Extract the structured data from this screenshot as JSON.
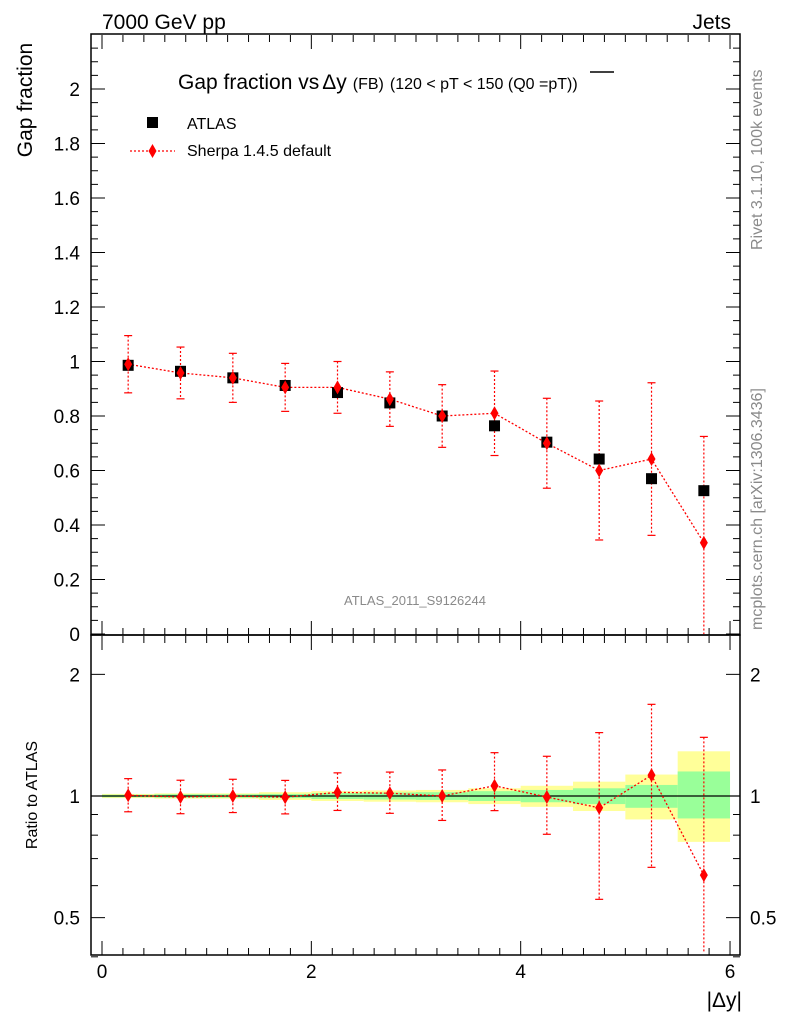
{
  "header": {
    "left": "7000 GeV pp",
    "right": "Jets"
  },
  "side_labels": {
    "rivet": "Rivet 3.1.10,  100k events",
    "mcplots": "mcplots.cern.ch [arXiv:1306.3436]"
  },
  "chart_data": [
    {
      "type": "scatter",
      "title_main": "Gap fraction vs",
      "title_delta": "Δy",
      "title_tail": "(FB)",
      "title_cut": "(120 < pT < 150 (Q0 =",
      "title_pt": "pT",
      "title_close": "))",
      "ylabel": "Gap fraction",
      "analysis_label": "ATLAS_2011_S9126244",
      "ylim": [
        0,
        2.2
      ],
      "y_ticks": [
        "0",
        "0.2",
        "0.4",
        "0.6",
        "0.8",
        "1",
        "1.2",
        "1.4",
        "1.6",
        "1.8",
        "2"
      ],
      "x": [
        0.25,
        0.75,
        1.25,
        1.75,
        2.25,
        2.75,
        3.25,
        3.75,
        4.25,
        4.75,
        5.25,
        5.75
      ],
      "series": [
        {
          "name": "ATLAS",
          "color": "#000000",
          "marker": "square",
          "values": [
            0.986,
            0.964,
            0.94,
            0.912,
            0.886,
            0.848,
            0.8,
            0.764,
            0.704,
            0.642,
            0.57,
            0.526
          ]
        },
        {
          "name": "Sherpa 1.4.5 default",
          "color": "#ff0000",
          "marker": "diamond",
          "values": [
            0.99,
            0.958,
            0.94,
            0.905,
            0.905,
            0.862,
            0.8,
            0.81,
            0.7,
            0.6,
            0.642,
            0.335
          ],
          "err": [
            0.105,
            0.095,
            0.09,
            0.088,
            0.095,
            0.1,
            0.115,
            0.155,
            0.165,
            0.255,
            0.28,
            0.39
          ]
        }
      ]
    },
    {
      "type": "scatter",
      "ylabel": "Ratio to ATLAS",
      "xlabel": "|Δy|",
      "ylim": [
        0.3,
        2.3
      ],
      "xlim": [
        -0.1,
        6.1
      ],
      "y_ticks": [
        "0.5",
        "1",
        "2"
      ],
      "y_tick_values": [
        0.5,
        1,
        2
      ],
      "x_ticks": [
        "0",
        "2",
        "4",
        "6"
      ],
      "x_tick_values": [
        0,
        2,
        4,
        6
      ],
      "bins": [
        0,
        0.5,
        1,
        1.5,
        2,
        2.5,
        3,
        3.5,
        4,
        4.5,
        5,
        5.5,
        6
      ],
      "band_yellow": [
        [
          0.988,
          1.012
        ],
        [
          0.985,
          1.015
        ],
        [
          0.985,
          1.015
        ],
        [
          0.978,
          1.022
        ],
        [
          0.972,
          1.028
        ],
        [
          0.968,
          1.032
        ],
        [
          0.965,
          1.035
        ],
        [
          0.955,
          1.045
        ],
        [
          0.94,
          1.06
        ],
        [
          0.918,
          1.085
        ],
        [
          0.875,
          1.13
        ],
        [
          0.77,
          1.29
        ]
      ],
      "band_green": [
        [
          0.993,
          1.007
        ],
        [
          0.99,
          1.01
        ],
        [
          0.99,
          1.01
        ],
        [
          0.988,
          1.012
        ],
        [
          0.983,
          1.017
        ],
        [
          0.98,
          1.02
        ],
        [
          0.978,
          1.022
        ],
        [
          0.972,
          1.028
        ],
        [
          0.965,
          1.035
        ],
        [
          0.955,
          1.045
        ],
        [
          0.935,
          1.065
        ],
        [
          0.88,
          1.15
        ]
      ],
      "ratio": {
        "name": "Sherpa 1.4.5 default",
        "color": "#ff0000",
        "values": [
          1.004,
          0.994,
          1.0,
          0.993,
          1.021,
          1.016,
          1.0,
          1.06,
          0.994,
          0.935,
          1.126,
          0.637
        ],
        "err_low": [
          0.09,
          0.09,
          0.09,
          0.09,
          0.1,
          0.11,
          0.13,
          0.14,
          0.19,
          0.38,
          0.46,
          0.33
        ],
        "err_high": [
          0.1,
          0.1,
          0.1,
          0.1,
          0.12,
          0.13,
          0.16,
          0.22,
          0.26,
          0.5,
          0.56,
          0.76
        ]
      }
    }
  ]
}
